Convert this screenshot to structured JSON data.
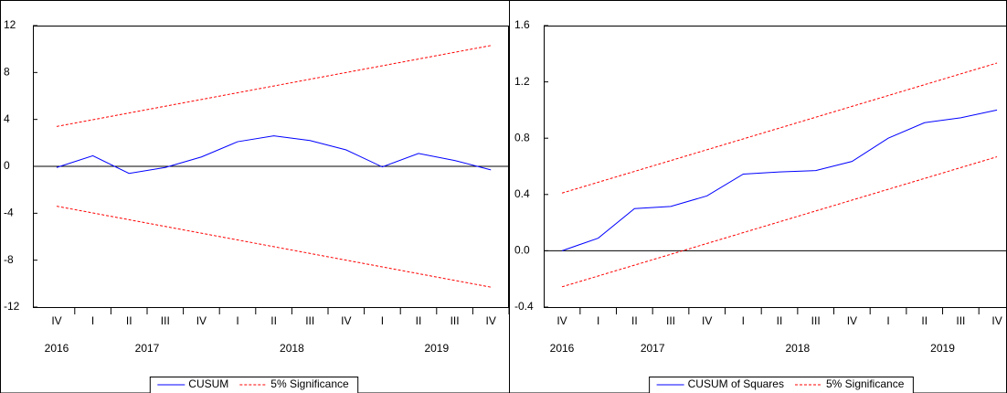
{
  "chart_data": [
    {
      "type": "line",
      "categories": [
        "IV",
        "I",
        "II",
        "III",
        "IV",
        "I",
        "II",
        "III",
        "IV",
        "I",
        "II",
        "III",
        "IV"
      ],
      "groups": [
        {
          "label": "2016",
          "count": 1
        },
        {
          "label": "2017",
          "count": 4
        },
        {
          "label": "2018",
          "count": 4
        },
        {
          "label": "2019",
          "count": 4
        }
      ],
      "ylim": [
        -12,
        12
      ],
      "yticks": [
        -12,
        -8,
        -4,
        0,
        4,
        8,
        12
      ],
      "zero_line": true,
      "legend": "bottom",
      "series": [
        {
          "name": "CUSUM",
          "color": "#0000ff",
          "values": [
            -0.1,
            0.9,
            -0.6,
            -0.1,
            0.8,
            2.1,
            2.6,
            2.2,
            1.4,
            -0.05,
            1.1,
            0.5,
            -0.3
          ]
        },
        {
          "name": "5% Significance",
          "color": "#ff0000",
          "dashed": true,
          "values": [
            3.4,
            3.975,
            4.55,
            5.125,
            5.7,
            6.275,
            6.85,
            7.425,
            8.0,
            8.575,
            9.15,
            9.725,
            10.3
          ],
          "lower_values": [
            -3.4,
            -3.975,
            -4.55,
            -5.125,
            -5.7,
            -6.275,
            -6.85,
            -7.425,
            -8.0,
            -8.575,
            -9.15,
            -9.725,
            -10.3
          ]
        }
      ]
    },
    {
      "type": "line",
      "categories": [
        "IV",
        "I",
        "II",
        "III",
        "IV",
        "I",
        "II",
        "III",
        "IV",
        "I",
        "II",
        "III",
        "IV"
      ],
      "groups": [
        {
          "label": "2016",
          "count": 1
        },
        {
          "label": "2017",
          "count": 4
        },
        {
          "label": "2018",
          "count": 4
        },
        {
          "label": "2019",
          "count": 4
        }
      ],
      "ylim": [
        -0.4,
        1.6
      ],
      "yticks": [
        -0.4,
        {
          "value": 0,
          "label": "0.0"
        },
        0.4,
        0.8,
        1.2,
        1.6
      ],
      "zero_line": true,
      "legend": "bottom",
      "series": [
        {
          "name": "CUSUM of Squares",
          "color": "#0000ff",
          "values": [
            0,
            0.09,
            0.3,
            0.315,
            0.39,
            0.545,
            0.56,
            0.57,
            0.635,
            0.8,
            0.91,
            0.945,
            1.0
          ]
        },
        {
          "name": "5% Significance",
          "color": "#ff0000",
          "dashed": true,
          "values": [
            0.41,
            0.487,
            0.564,
            0.641,
            0.718,
            0.795,
            0.872,
            0.949,
            1.026,
            1.103,
            1.18,
            1.257,
            1.334
          ],
          "lower_values": [
            -0.256,
            -0.179,
            -0.102,
            -0.025,
            0.052,
            0.129,
            0.206,
            0.283,
            0.36,
            0.437,
            0.514,
            0.591,
            0.668
          ]
        }
      ]
    }
  ]
}
